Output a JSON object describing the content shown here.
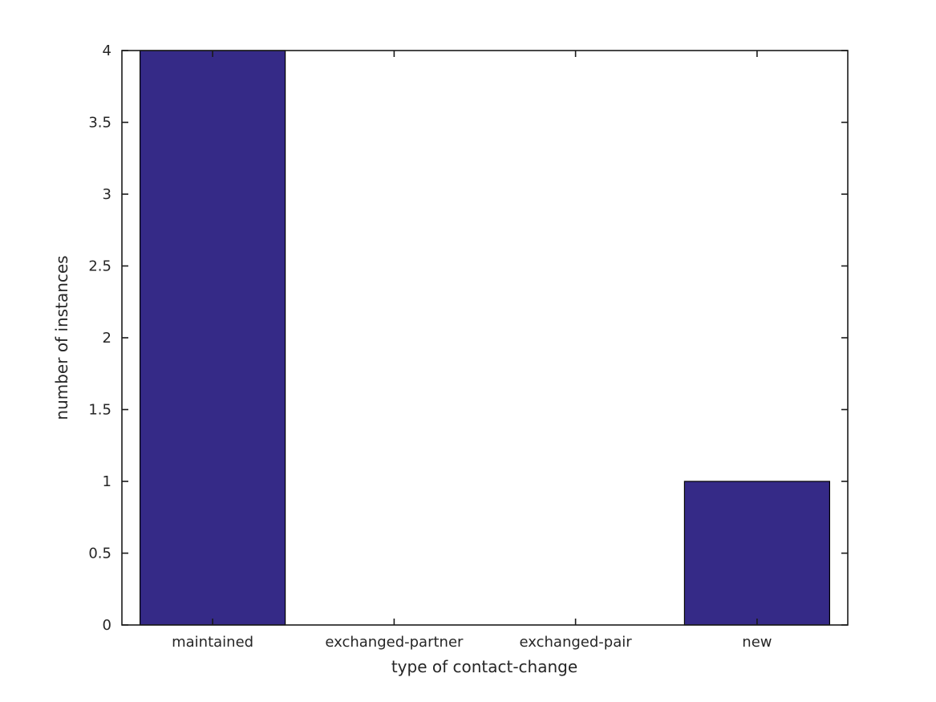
{
  "figure": {
    "background": "#ffffff"
  },
  "chart_data": {
    "type": "bar",
    "categories": [
      "maintained",
      "exchanged-partner",
      "exchanged-pair",
      "new"
    ],
    "values": [
      4,
      0,
      0,
      1
    ],
    "title": "",
    "xlabel": "type of contact-change",
    "ylabel": "number of instances",
    "ylim": [
      0,
      4
    ],
    "yticks": [
      0,
      0.5,
      1,
      1.5,
      2,
      2.5,
      3,
      3.5,
      4
    ],
    "ytick_labels": [
      "0",
      "0.5",
      "1",
      "1.5",
      "2",
      "2.5",
      "3",
      "3.5",
      "4"
    ],
    "bar_width_fraction": 0.8,
    "bar_color": "#352a87",
    "bar_edge_color": "#000000",
    "axis_color": "#1a1a1a",
    "text_color": "#262626",
    "grid": false,
    "legend": null,
    "box": true,
    "tick_direction": "in"
  }
}
